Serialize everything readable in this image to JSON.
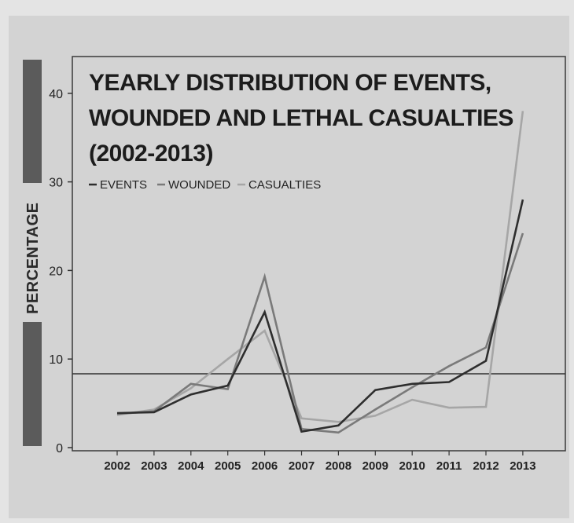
{
  "chart_data": {
    "type": "line",
    "title_lines": [
      "YEARLY  DISTRIBUTION OF EVENTS,",
      "WOUNDED AND LETHAL CASUALTIES",
      "(2002-2013)"
    ],
    "xlabel": "",
    "ylabel": "PERCENTAGE",
    "categories": [
      "2002",
      "2003",
      "2004",
      "2005",
      "2006",
      "2007",
      "2008",
      "2009",
      "2010",
      "2011",
      "2012",
      "2013"
    ],
    "y_ticks": [
      0,
      10,
      20,
      30,
      40
    ],
    "ylim": [
      0,
      45
    ],
    "reference_line": 8.33,
    "series": [
      {
        "name": "EVENTS",
        "color": "#2e2e2e",
        "values": [
          3.9,
          4.0,
          6.0,
          7.0,
          15.3,
          1.8,
          2.5,
          6.5,
          7.2,
          7.4,
          9.8,
          28.0
        ]
      },
      {
        "name": "WOUNDED",
        "color": "#7a7a7a",
        "values": [
          3.8,
          4.1,
          7.2,
          6.6,
          19.3,
          2.1,
          1.7,
          4.3,
          6.8,
          9.2,
          11.3,
          24.2
        ]
      },
      {
        "name": "CASUALTIES",
        "color": "#a6a6a6",
        "values": [
          3.7,
          4.3,
          6.7,
          10.0,
          13.2,
          3.3,
          2.9,
          3.6,
          5.4,
          4.5,
          4.6,
          38.0
        ]
      }
    ],
    "legend_position": "top-left"
  }
}
